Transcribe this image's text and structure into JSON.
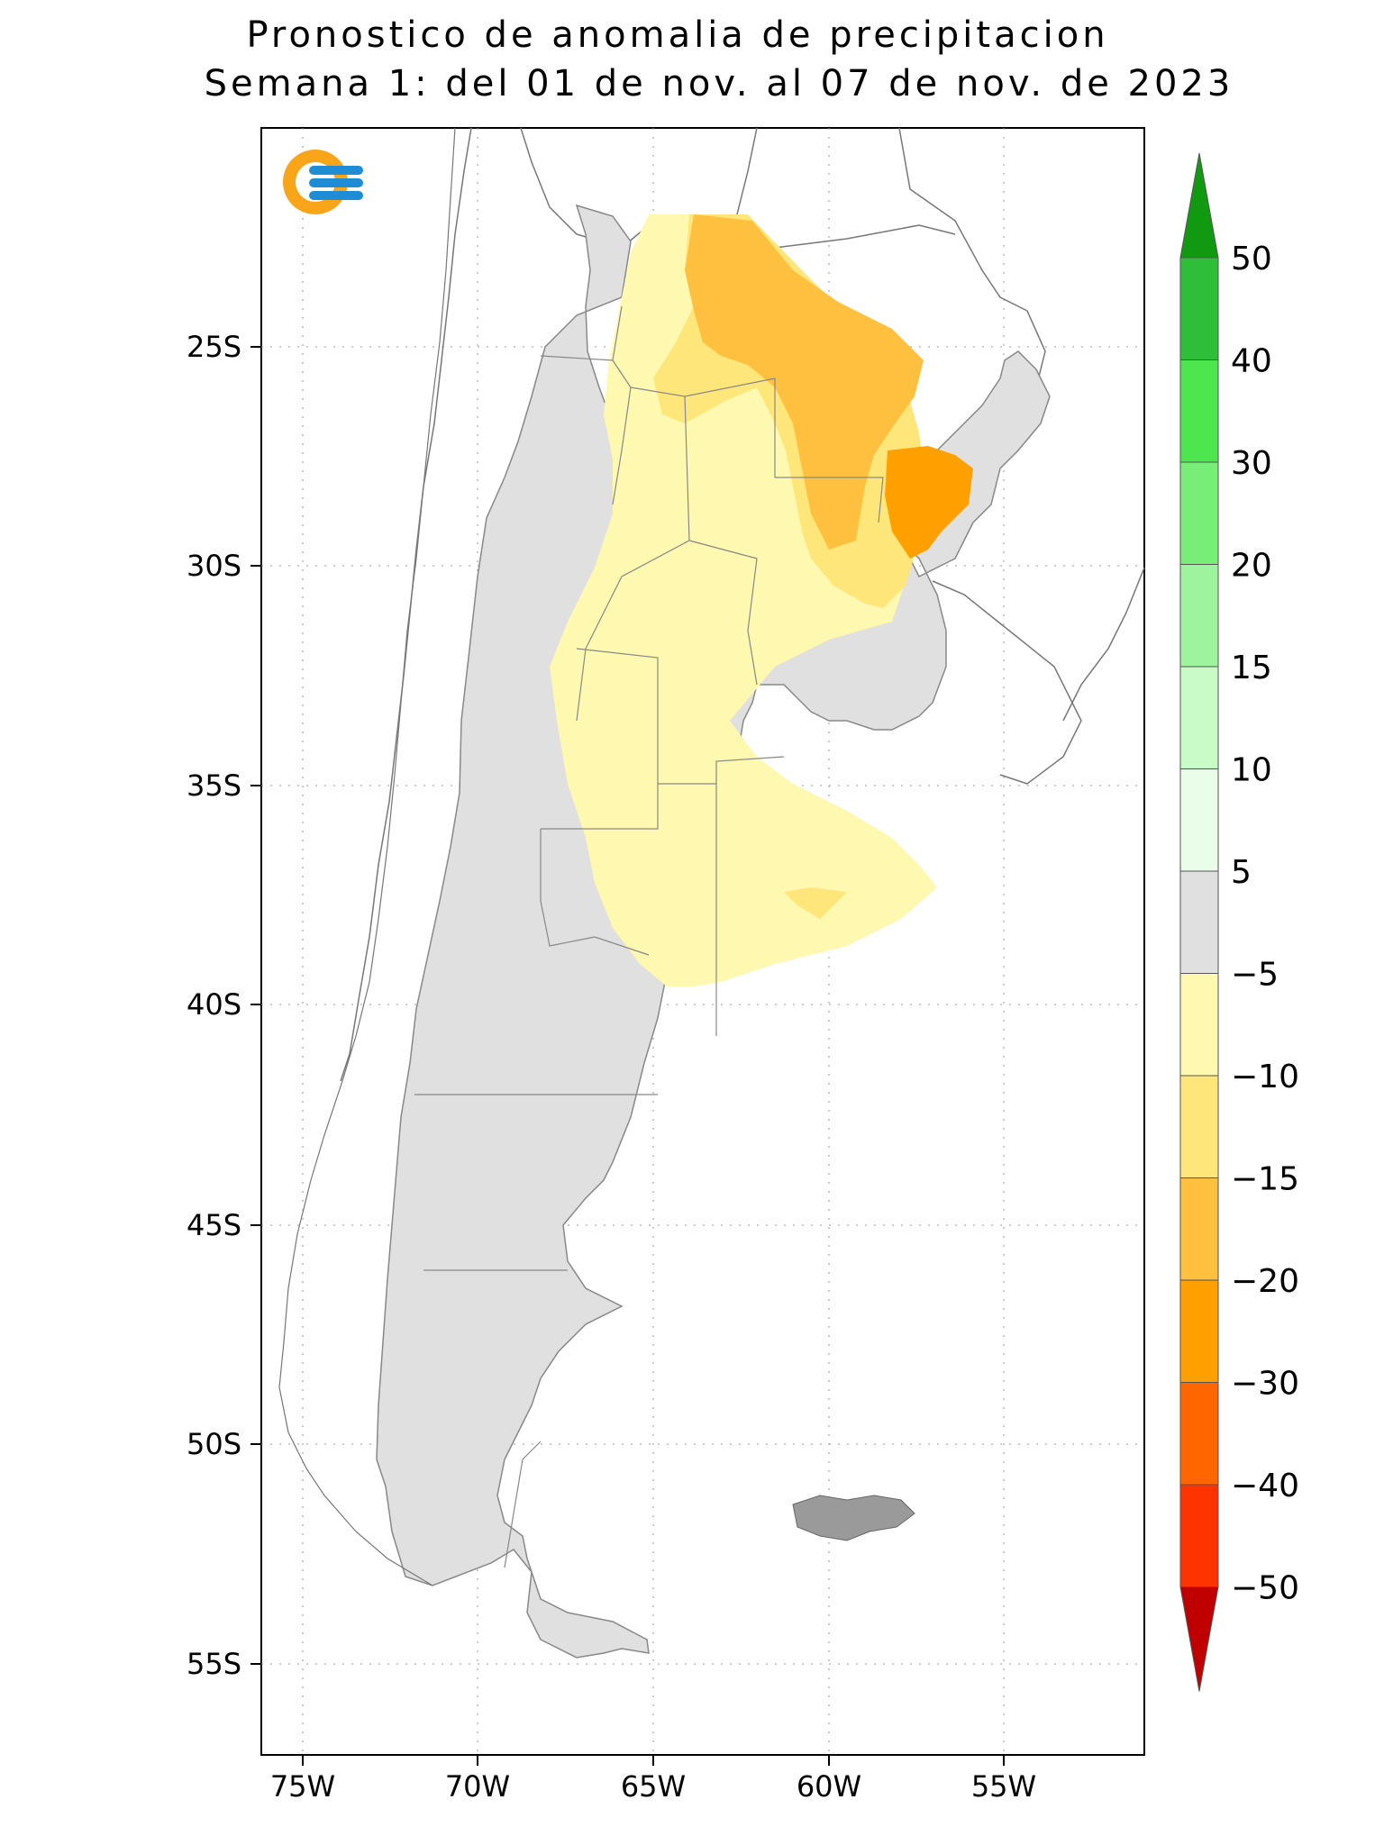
{
  "title": {
    "line1": "Pronostico de anomalia de precipitacion",
    "line2": "Semana 1: del 01 de nov. al 07 de nov. de 2023"
  },
  "logo_icon": "smn-logo-icon",
  "lat_labels": [
    "25S",
    "30S",
    "35S",
    "40S",
    "45S",
    "50S",
    "55S"
  ],
  "lon_labels": [
    "75W",
    "70W",
    "65W",
    "60W",
    "55W"
  ],
  "colorbar": {
    "labels": [
      "50",
      "40",
      "30",
      "20",
      "15",
      "10",
      "5",
      "−5",
      "−10",
      "−15",
      "−20",
      "−30",
      "−40",
      "−50"
    ],
    "colors": [
      "#2fbe3a",
      "#4ee64e",
      "#78ee78",
      "#9ef39e",
      "#c8fbc8",
      "#e9fde9",
      "#e0e0e0",
      "#fff8b0",
      "#ffe67a",
      "#ffc040",
      "#ffa000",
      "#ff6600",
      "#ff3300"
    ],
    "top_arrow_color": "#119911",
    "bottom_arrow_color": "#c00000"
  },
  "legend": [
    {
      "range": "-5 a 5",
      "color": "#e0e0e0"
    },
    {
      "range": "-10 a -5",
      "color": "#fff8b0"
    },
    {
      "range": "-15 a -10",
      "color": "#ffe67a"
    },
    {
      "range": "-20 a -15",
      "color": "#ffc040"
    },
    {
      "range": "-30 a -20",
      "color": "#ffa000"
    }
  ]
}
